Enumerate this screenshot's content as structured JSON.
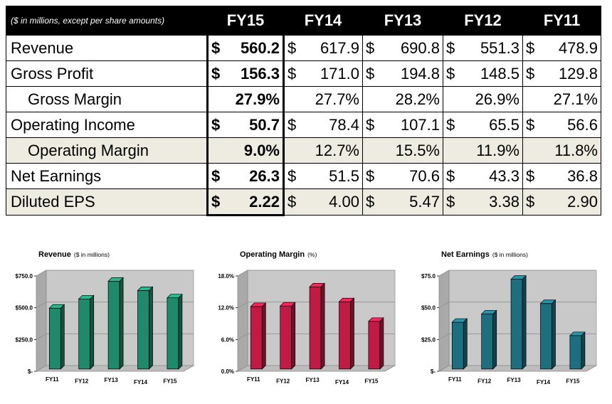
{
  "table": {
    "caption": "($ in millions, except per share amounts)",
    "years": [
      "FY15",
      "FY14",
      "FY13",
      "FY12",
      "FY11"
    ],
    "rows": [
      {
        "label": "Revenue",
        "indent": false,
        "shaded": false,
        "dollar": true,
        "values": [
          "560.2",
          "617.9",
          "690.8",
          "551.3",
          "478.9"
        ]
      },
      {
        "label": "Gross Profit",
        "indent": false,
        "shaded": false,
        "dollar": true,
        "values": [
          "156.3",
          "171.0",
          "194.8",
          "148.5",
          "129.8"
        ]
      },
      {
        "label": "Gross Margin",
        "indent": true,
        "shaded": false,
        "dollar": false,
        "values": [
          "27.9%",
          "27.7%",
          "28.2%",
          "26.9%",
          "27.1%"
        ]
      },
      {
        "label": "Operating Income",
        "indent": false,
        "shaded": false,
        "dollar": true,
        "values": [
          "50.7",
          "78.4",
          "107.1",
          "65.5",
          "56.6"
        ]
      },
      {
        "label": "Operating Margin",
        "indent": true,
        "shaded": true,
        "dollar": false,
        "values": [
          "9.0%",
          "12.7%",
          "15.5%",
          "11.9%",
          "11.8%"
        ]
      },
      {
        "label": "Net Earnings",
        "indent": false,
        "shaded": false,
        "dollar": true,
        "values": [
          "26.3",
          "51.5",
          "70.6",
          "43.3",
          "36.8"
        ]
      },
      {
        "label": "Diluted EPS",
        "indent": false,
        "shaded": true,
        "dollar": true,
        "values": [
          "2.22",
          "4.00",
          "5.47",
          "3.38",
          "2.90"
        ]
      }
    ]
  },
  "chart_data": [
    {
      "type": "bar",
      "title": "Revenue",
      "subtitle": "($ in millions)",
      "categories": [
        "FY11",
        "FY12",
        "FY13",
        "FY14",
        "FY15"
      ],
      "values": [
        478.9,
        551.3,
        690.8,
        617.9,
        560.2
      ],
      "ylim": [
        0,
        750
      ],
      "yticks": [
        "$-",
        "$250.0",
        "$500.0",
        "$750.0"
      ],
      "color": "#1f8a6b",
      "grid": true
    },
    {
      "type": "bar",
      "title": "Operating Margin",
      "subtitle": "(%)",
      "categories": [
        "FY11",
        "FY12",
        "FY13",
        "FY14",
        "FY15"
      ],
      "values": [
        11.8,
        11.9,
        15.5,
        12.7,
        9.0
      ],
      "ylim": [
        0,
        18
      ],
      "yticks": [
        "0.0%",
        "6.0%",
        "12.0%",
        "18.0%"
      ],
      "color": "#c01b45",
      "grid": true
    },
    {
      "type": "bar",
      "title": "Net Earnings",
      "subtitle": "($ in millions)",
      "categories": [
        "FY11",
        "FY12",
        "FY13",
        "FY14",
        "FY15"
      ],
      "values": [
        36.8,
        43.3,
        70.6,
        51.5,
        26.3
      ],
      "ylim": [
        0,
        75
      ],
      "yticks": [
        "$-",
        "$25.0",
        "$50.0",
        "$75.0"
      ],
      "color": "#1d6f80",
      "grid": true
    }
  ],
  "dollar_sign": "$"
}
